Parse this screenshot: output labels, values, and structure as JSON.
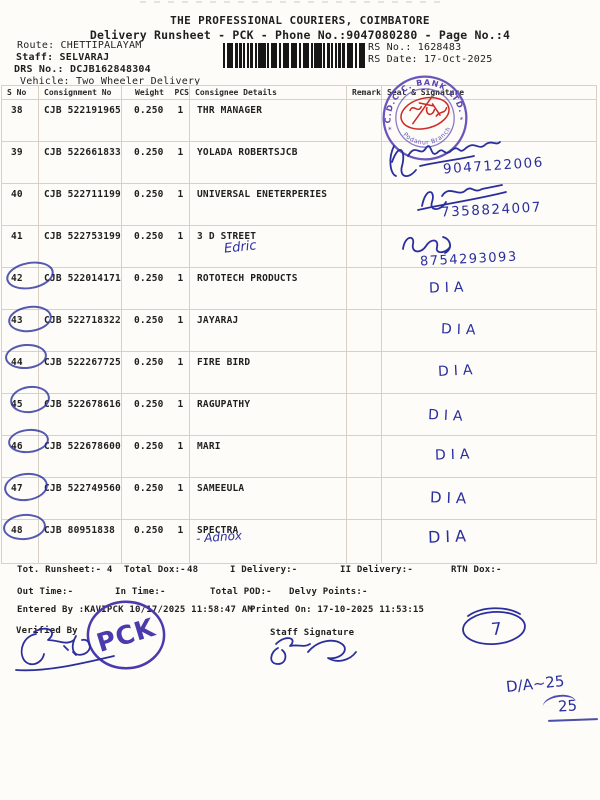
{
  "header": {
    "company": "THE PROFESSIONAL COURIERS, COIMBATORE",
    "subtitle": "Delivery Runsheet - PCK - Phone No.:9047080280 - Page No.:4",
    "route": "Route: CHETTIPALAYAM",
    "staff": "Staff: SELVARAJ",
    "drs_no": "DRS No.: DCJB162848304",
    "vehicle": "Vehicle: Two Wheeler Delivery",
    "rs_no": "RS No.: 1628483",
    "rs_date": "RS Date: 17-Oct-2025"
  },
  "table": {
    "headers": [
      "S No",
      "Consignment No",
      "Weight",
      "PCS",
      "Consignee Details",
      "Remarks",
      "Seal & Signature"
    ],
    "rows": [
      {
        "sno": "38",
        "consignment": "CJB 522191965",
        "weight": "0.250",
        "pcs": "1",
        "consignee": "THR MANAGER"
      },
      {
        "sno": "39",
        "consignment": "CJB 522661833",
        "weight": "0.250",
        "pcs": "1",
        "consignee": "YOLADA ROBERTSJCB",
        "phone": "9047122006"
      },
      {
        "sno": "40",
        "consignment": "CJB 522711199",
        "weight": "0.250",
        "pcs": "1",
        "consignee": "UNIVERSAL ENETERPERIES",
        "phone": "7358824007"
      },
      {
        "sno": "41",
        "consignment": "CJB 522753199",
        "weight": "0.250",
        "pcs": "1",
        "consignee": "3 D STREET",
        "note": "Edric",
        "phone": "8754293093"
      },
      {
        "sno": "42",
        "consignment": "CJB 522014171",
        "weight": "0.250",
        "pcs": "1",
        "consignee": "ROTOTECH PRODUCTS",
        "circled": true
      },
      {
        "sno": "43",
        "consignment": "CJB 522718322",
        "weight": "0.250",
        "pcs": "1",
        "consignee": "JAYARAJ",
        "circled": true
      },
      {
        "sno": "44",
        "consignment": "CJB 522267725",
        "weight": "0.250",
        "pcs": "1",
        "consignee": "FIRE BIRD",
        "circled": true
      },
      {
        "sno": "45",
        "consignment": "CJB 522678616",
        "weight": "0.250",
        "pcs": "1",
        "consignee": "RAGUPATHY",
        "circled": true
      },
      {
        "sno": "46",
        "consignment": "CJB 522678600",
        "weight": "0.250",
        "pcs": "1",
        "consignee": "MARI",
        "circled": true
      },
      {
        "sno": "47",
        "consignment": "CJB 522749560",
        "weight": "0.250",
        "pcs": "1",
        "consignee": "SAMEEULA",
        "circled": true
      },
      {
        "sno": "48",
        "consignment": "CJB 80951838",
        "weight": "0.250",
        "pcs": "1",
        "consignee": "SPECTRA",
        "note": "- Adnox",
        "circled": true
      }
    ]
  },
  "handwriting": {
    "dia": "DIA",
    "tally": "7",
    "da_note": "D/A~25",
    "da_count": "25"
  },
  "stamps": {
    "bank_name": "C.D.C.C. BANK LTD.",
    "bank_star": "*",
    "bank_branch": "Podanur Branch",
    "pck": "PCK"
  },
  "totals": {
    "runsheet": "Tot. Runsheet:- 4",
    "total_dox_label": "Total Dox:-",
    "total_dox_value": "48",
    "i_delivery": "I Delivery:-",
    "ii_delivery": "II Delivery:-",
    "rtn_dox": "RTN Dox:-",
    "out_time": "Out Time:-",
    "in_time": "In Time:-",
    "total_pod": "Total POD:-",
    "delvy_points": "Delvy Points:-"
  },
  "footer": {
    "entered_by": "Entered By :KAVIPCK 10/17/2025 11:58:47 AM",
    "printed_on": "Printed On: 17-10-2025 11:53:15",
    "verified_by": "Verified By",
    "staff_signature": "Staff Signature"
  },
  "colors": {
    "ink_blue": "#2b2f9e",
    "stamp_purple": "#5a44b2",
    "stamp_red": "#cc2a24",
    "print_black": "#1f1f1f"
  }
}
